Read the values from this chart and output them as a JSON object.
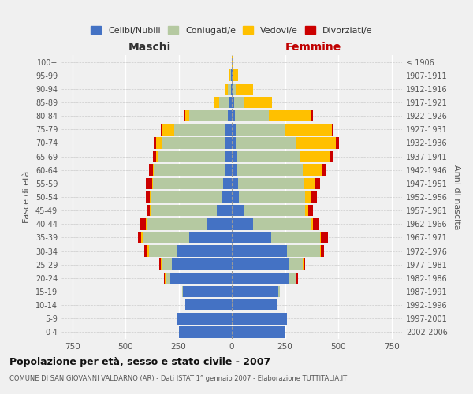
{
  "age_groups": [
    "0-4",
    "5-9",
    "10-14",
    "15-19",
    "20-24",
    "25-29",
    "30-34",
    "35-39",
    "40-44",
    "45-49",
    "50-54",
    "55-59",
    "60-64",
    "65-69",
    "70-74",
    "75-79",
    "80-84",
    "85-89",
    "90-94",
    "95-99",
    "100+"
  ],
  "birth_years": [
    "2002-2006",
    "1997-2001",
    "1992-1996",
    "1987-1991",
    "1982-1986",
    "1977-1981",
    "1972-1976",
    "1967-1971",
    "1962-1966",
    "1957-1961",
    "1952-1956",
    "1947-1951",
    "1942-1946",
    "1937-1941",
    "1932-1936",
    "1927-1931",
    "1922-1926",
    "1917-1921",
    "1912-1916",
    "1907-1911",
    "≤ 1906"
  ],
  "maschi": {
    "celibi": [
      250,
      260,
      220,
      230,
      290,
      280,
      260,
      200,
      120,
      70,
      50,
      40,
      35,
      35,
      35,
      30,
      20,
      10,
      5,
      2,
      0
    ],
    "coniugati": [
      0,
      0,
      0,
      5,
      20,
      50,
      130,
      220,
      280,
      310,
      330,
      330,
      330,
      310,
      290,
      240,
      180,
      50,
      15,
      5,
      0
    ],
    "vedovi": [
      0,
      0,
      0,
      0,
      5,
      5,
      5,
      5,
      5,
      5,
      5,
      5,
      5,
      10,
      30,
      60,
      20,
      20,
      10,
      5,
      0
    ],
    "divorziati": [
      0,
      0,
      0,
      0,
      5,
      5,
      15,
      15,
      30,
      15,
      20,
      30,
      20,
      15,
      10,
      5,
      5,
      0,
      0,
      0,
      0
    ]
  },
  "femmine": {
    "nubili": [
      250,
      260,
      210,
      220,
      270,
      270,
      260,
      185,
      100,
      55,
      35,
      30,
      25,
      25,
      20,
      20,
      15,
      10,
      5,
      3,
      0
    ],
    "coniugate": [
      0,
      0,
      0,
      5,
      30,
      65,
      155,
      230,
      270,
      290,
      310,
      310,
      310,
      295,
      280,
      230,
      160,
      50,
      15,
      5,
      0
    ],
    "vedove": [
      0,
      0,
      0,
      0,
      5,
      5,
      5,
      5,
      10,
      15,
      25,
      50,
      90,
      140,
      190,
      220,
      200,
      130,
      80,
      20,
      2
    ],
    "divorziate": [
      0,
      0,
      0,
      0,
      5,
      5,
      15,
      30,
      30,
      20,
      30,
      25,
      20,
      15,
      15,
      5,
      5,
      0,
      0,
      0,
      0
    ]
  },
  "colors": {
    "celibi": "#4472c4",
    "coniugati": "#b5c9a1",
    "vedovi": "#ffc000",
    "divorziati": "#cc0000"
  },
  "legend_labels": [
    "Celibi/Nubili",
    "Coniugati/e",
    "Vedovi/e",
    "Divorziati/e"
  ],
  "title": "Popolazione per età, sesso e stato civile - 2007",
  "subtitle": "COMUNE DI SAN GIOVANNI VALDARNO (AR) - Dati ISTAT 1° gennaio 2007 - Elaborazione TUTTITALIA.IT",
  "xlabel_left": "Maschi",
  "xlabel_right": "Femmine",
  "ylabel_left": "Fasce di età",
  "ylabel_right": "Anni di nascita",
  "xlim": 800,
  "bg_color": "#f0f0f0",
  "bar_height": 0.85
}
